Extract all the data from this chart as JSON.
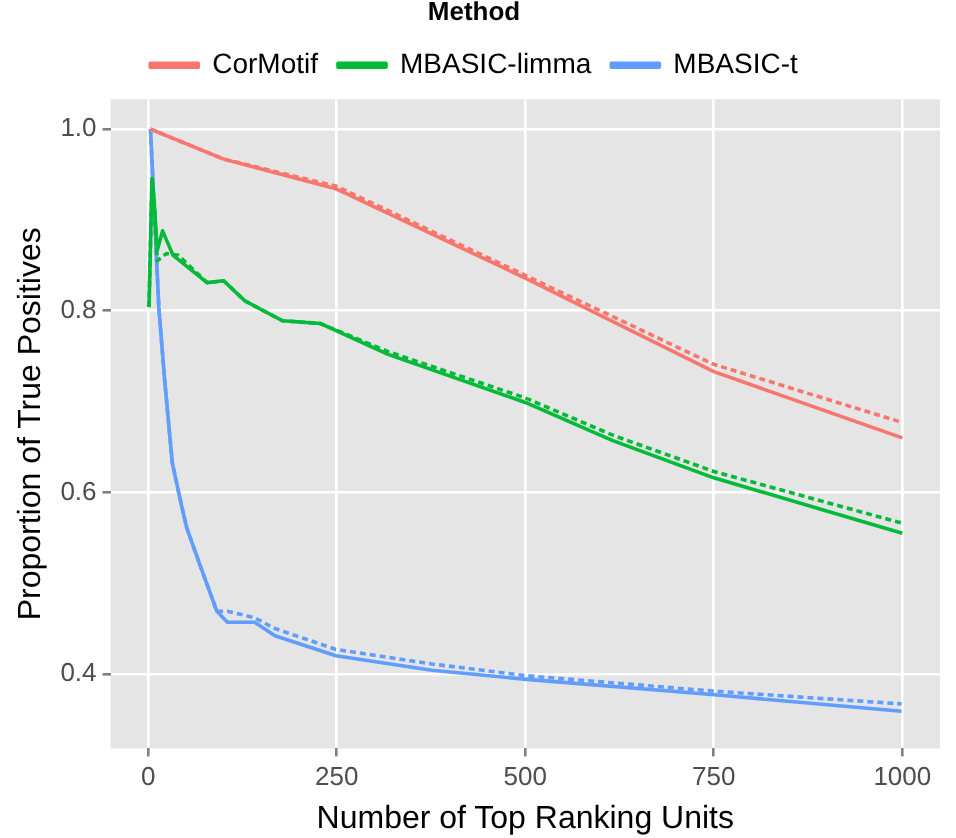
{
  "chart_data": {
    "type": "line",
    "xlabel": "Number of Top Ranking Units",
    "ylabel": "Proportion of True Positives",
    "legend_title": "Method",
    "legend": "top",
    "grid": true,
    "marker": "none",
    "xlim": [
      -50,
      1050
    ],
    "xticks": [
      0,
      250,
      500,
      750,
      1000
    ],
    "ylim": [
      0.318,
      1.033
    ],
    "yticks": [
      0.4,
      0.6,
      0.8,
      {
        "value": 1,
        "label": "1.0"
      }
    ],
    "series": [
      {
        "name": "CorMotif",
        "color": "#f8766d",
        "line_style": "solid",
        "x": [
          3,
          100,
          250,
          500,
          750,
          1000
        ],
        "values": [
          1.0,
          0.967,
          0.934,
          0.836,
          0.733,
          0.66
        ]
      },
      {
        "color": "#f8766d",
        "line_style": "dashed",
        "x": [
          3,
          100,
          250,
          500,
          750,
          1000
        ],
        "values": [
          1.0,
          0.967,
          0.937,
          0.839,
          0.741,
          0.677
        ]
      },
      {
        "name": "MBASIC-limma",
        "color": "#00ba38",
        "line_style": "solid",
        "x": [
          1,
          5,
          8,
          12,
          19,
          33,
          78,
          100,
          128,
          178,
          228,
          318,
          500,
          616,
          750,
          1000
        ],
        "values": [
          0.804,
          0.946,
          0.917,
          0.867,
          0.888,
          0.861,
          0.831,
          0.833,
          0.811,
          0.789,
          0.786,
          0.752,
          0.699,
          0.657,
          0.616,
          0.555
        ]
      },
      {
        "color": "#00ba38",
        "line_style": "dashed",
        "x": [
          1,
          5,
          8,
          12,
          24,
          40,
          78,
          100,
          128,
          178,
          228,
          318,
          500,
          616,
          750,
          1000
        ],
        "values": [
          0.804,
          0.946,
          0.917,
          0.855,
          0.863,
          0.861,
          0.831,
          0.833,
          0.811,
          0.789,
          0.786,
          0.755,
          0.704,
          0.663,
          0.623,
          0.566
        ]
      },
      {
        "name": "MBASIC-t",
        "color": "#619cff",
        "line_style": "solid",
        "x": [
          3,
          14,
          22,
          32,
          44,
          51,
          69,
          91,
          105,
          141,
          168,
          249,
          376,
          502,
          751,
          999
        ],
        "values": [
          1.0,
          0.804,
          0.721,
          0.632,
          0.586,
          0.561,
          0.519,
          0.469,
          0.457,
          0.457,
          0.442,
          0.42,
          0.404,
          0.394,
          0.377,
          0.359
        ]
      },
      {
        "color": "#619cff",
        "line_style": "dashed",
        "x": [
          3,
          14,
          22,
          32,
          44,
          51,
          69,
          91,
          105,
          141,
          168,
          249,
          376,
          502,
          751,
          999
        ],
        "values": [
          1.0,
          0.804,
          0.721,
          0.632,
          0.586,
          0.561,
          0.519,
          0.469,
          0.469,
          0.462,
          0.45,
          0.427,
          0.411,
          0.398,
          0.381,
          0.367
        ]
      }
    ]
  }
}
